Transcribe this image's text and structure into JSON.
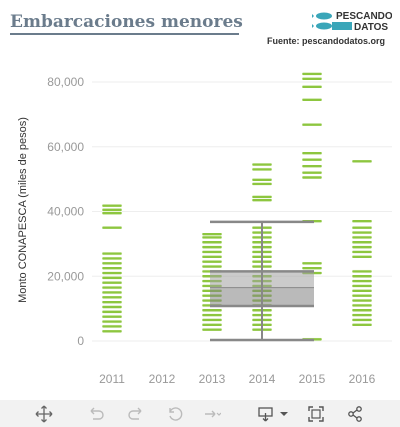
{
  "header": {
    "title": "Embarcaciones  menores",
    "source": "Fuente: pescandodatos.org",
    "logo_line1": "PESCANDO",
    "logo_line2": "DATOS"
  },
  "colors": {
    "bar": "#8dc63f",
    "box": "#888888",
    "axis_text": "#999999",
    "title": "#6b7c8c"
  },
  "toolbar": {
    "icons": [
      "move-icon",
      "undo-icon",
      "redo-icon",
      "reset-icon",
      "forward-icon",
      "download-icon",
      "fullscreen-icon",
      "share-icon"
    ]
  },
  "chart_data": {
    "type": "strip",
    "ylabel": "Monto CONAPESCA (miles de pesos)",
    "xlabel": "",
    "categories": [
      "2011",
      "2012",
      "2013",
      "2014",
      "2015",
      "2016"
    ],
    "ylim": [
      0,
      85000
    ],
    "yticks": [
      0,
      20000,
      40000,
      60000,
      80000
    ],
    "ytick_labels": [
      "0",
      "20,000",
      "40,000",
      "60,000",
      "80,000"
    ],
    "series": [
      {
        "category": "2011",
        "values": [
          3000,
          4500,
          6000,
          7500,
          9000,
          10500,
          12000,
          13500,
          15000,
          16500,
          18000,
          19500,
          21000,
          22500,
          24000,
          25500,
          27000,
          35000,
          39500,
          40500,
          41800
        ]
      },
      {
        "category": "2012",
        "values": []
      },
      {
        "category": "2013",
        "values": [
          3500,
          5000,
          6500,
          8000,
          9500,
          11000,
          12500,
          14000,
          15500,
          17000,
          18500,
          20000,
          21500,
          23000,
          24500,
          26000,
          27500,
          29000,
          30500,
          32000,
          33000
        ]
      },
      {
        "category": "2014",
        "values": [
          3500,
          5000,
          6500,
          8000,
          9500,
          11000,
          12500,
          14000,
          15500,
          17000,
          18500,
          20000,
          21500,
          23000,
          24500,
          26000,
          27500,
          29000,
          30500,
          32000,
          33500,
          35000,
          43500,
          44500,
          48500,
          49800,
          53000,
          54500
        ]
      },
      {
        "category": "2015",
        "values": [
          500,
          21000,
          22500,
          24000,
          37000,
          50500,
          52000,
          54000,
          56000,
          58000,
          66800,
          74500,
          78500,
          81000,
          82500
        ]
      },
      {
        "category": "2016",
        "values": [
          5000,
          6500,
          8000,
          9500,
          11000,
          12500,
          14000,
          15500,
          17000,
          18500,
          20000,
          21500,
          26000,
          27500,
          29000,
          30500,
          32000,
          33500,
          35000,
          37000,
          55500
        ]
      }
    ],
    "boxplot": {
      "x_range": [
        "2013",
        "2015"
      ],
      "whisker_low": 300,
      "q1": 10800,
      "median": 16500,
      "q3": 21500,
      "whisker_high": 36800
    }
  }
}
